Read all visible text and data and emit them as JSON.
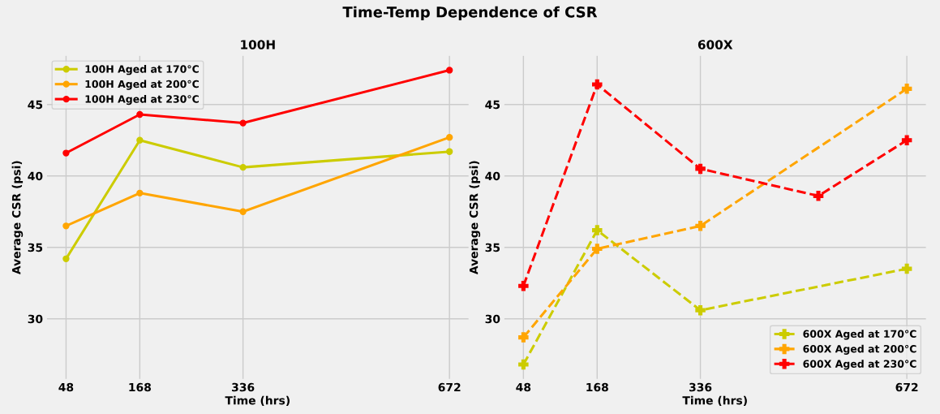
{
  "chart_data": [
    {
      "type": "line",
      "title": "100H",
      "xlabel": "Time (hrs)",
      "ylabel": "Average CSR (psi)",
      "annotations": [
        "Time-Temp Dependence of CSR"
      ],
      "xlim": [
        17,
        703
      ],
      "xticks": [
        48,
        168,
        336,
        672
      ],
      "ylim": [
        25.8,
        48.4
      ],
      "yticks": [
        30,
        35,
        40,
        45
      ],
      "grid": true,
      "legend": "top left",
      "marker": "circle",
      "line_style": "solid",
      "series": [
        {
          "name": "100H Aged at 170°C",
          "color": "#cccc00",
          "x": [
            48,
            168,
            336,
            672
          ],
          "values": [
            34.2,
            42.5,
            40.6,
            41.7
          ]
        },
        {
          "name": "100H Aged at 200°C",
          "color": "#ffa500",
          "x": [
            48,
            168,
            336,
            672
          ],
          "values": [
            36.5,
            38.8,
            37.5,
            42.7
          ]
        },
        {
          "name": "100H Aged at 230°C",
          "color": "#ff0000",
          "x": [
            48,
            168,
            336,
            672
          ],
          "values": [
            41.6,
            44.3,
            43.7,
            47.4
          ]
        }
      ]
    },
    {
      "type": "line",
      "title": "600X",
      "xlabel": "Time (hrs)",
      "ylabel": "Average CSR (psi)",
      "xlim": [
        17,
        703
      ],
      "xticks": [
        48,
        168,
        336,
        672
      ],
      "ylim": [
        25.8,
        48.4
      ],
      "yticks": [
        30,
        35,
        40,
        45
      ],
      "grid": true,
      "legend": "bottom right",
      "marker": "cross",
      "line_style": "dashed",
      "series": [
        {
          "name": "600X Aged at 170°C",
          "color": "#cccc00",
          "x": [
            48,
            168,
            336,
            672
          ],
          "values": [
            26.8,
            36.2,
            30.6,
            33.5
          ]
        },
        {
          "name": "600X Aged at 200°C",
          "color": "#ffa500",
          "x": [
            48,
            168,
            336,
            672
          ],
          "values": [
            28.7,
            34.9,
            36.5,
            46.1
          ]
        },
        {
          "name": "600X Aged at 230°C",
          "color": "#ff0000",
          "x": [
            48,
            168,
            336,
            528,
            672
          ],
          "values": [
            32.3,
            46.4,
            40.5,
            38.6,
            42.5
          ]
        }
      ]
    }
  ]
}
